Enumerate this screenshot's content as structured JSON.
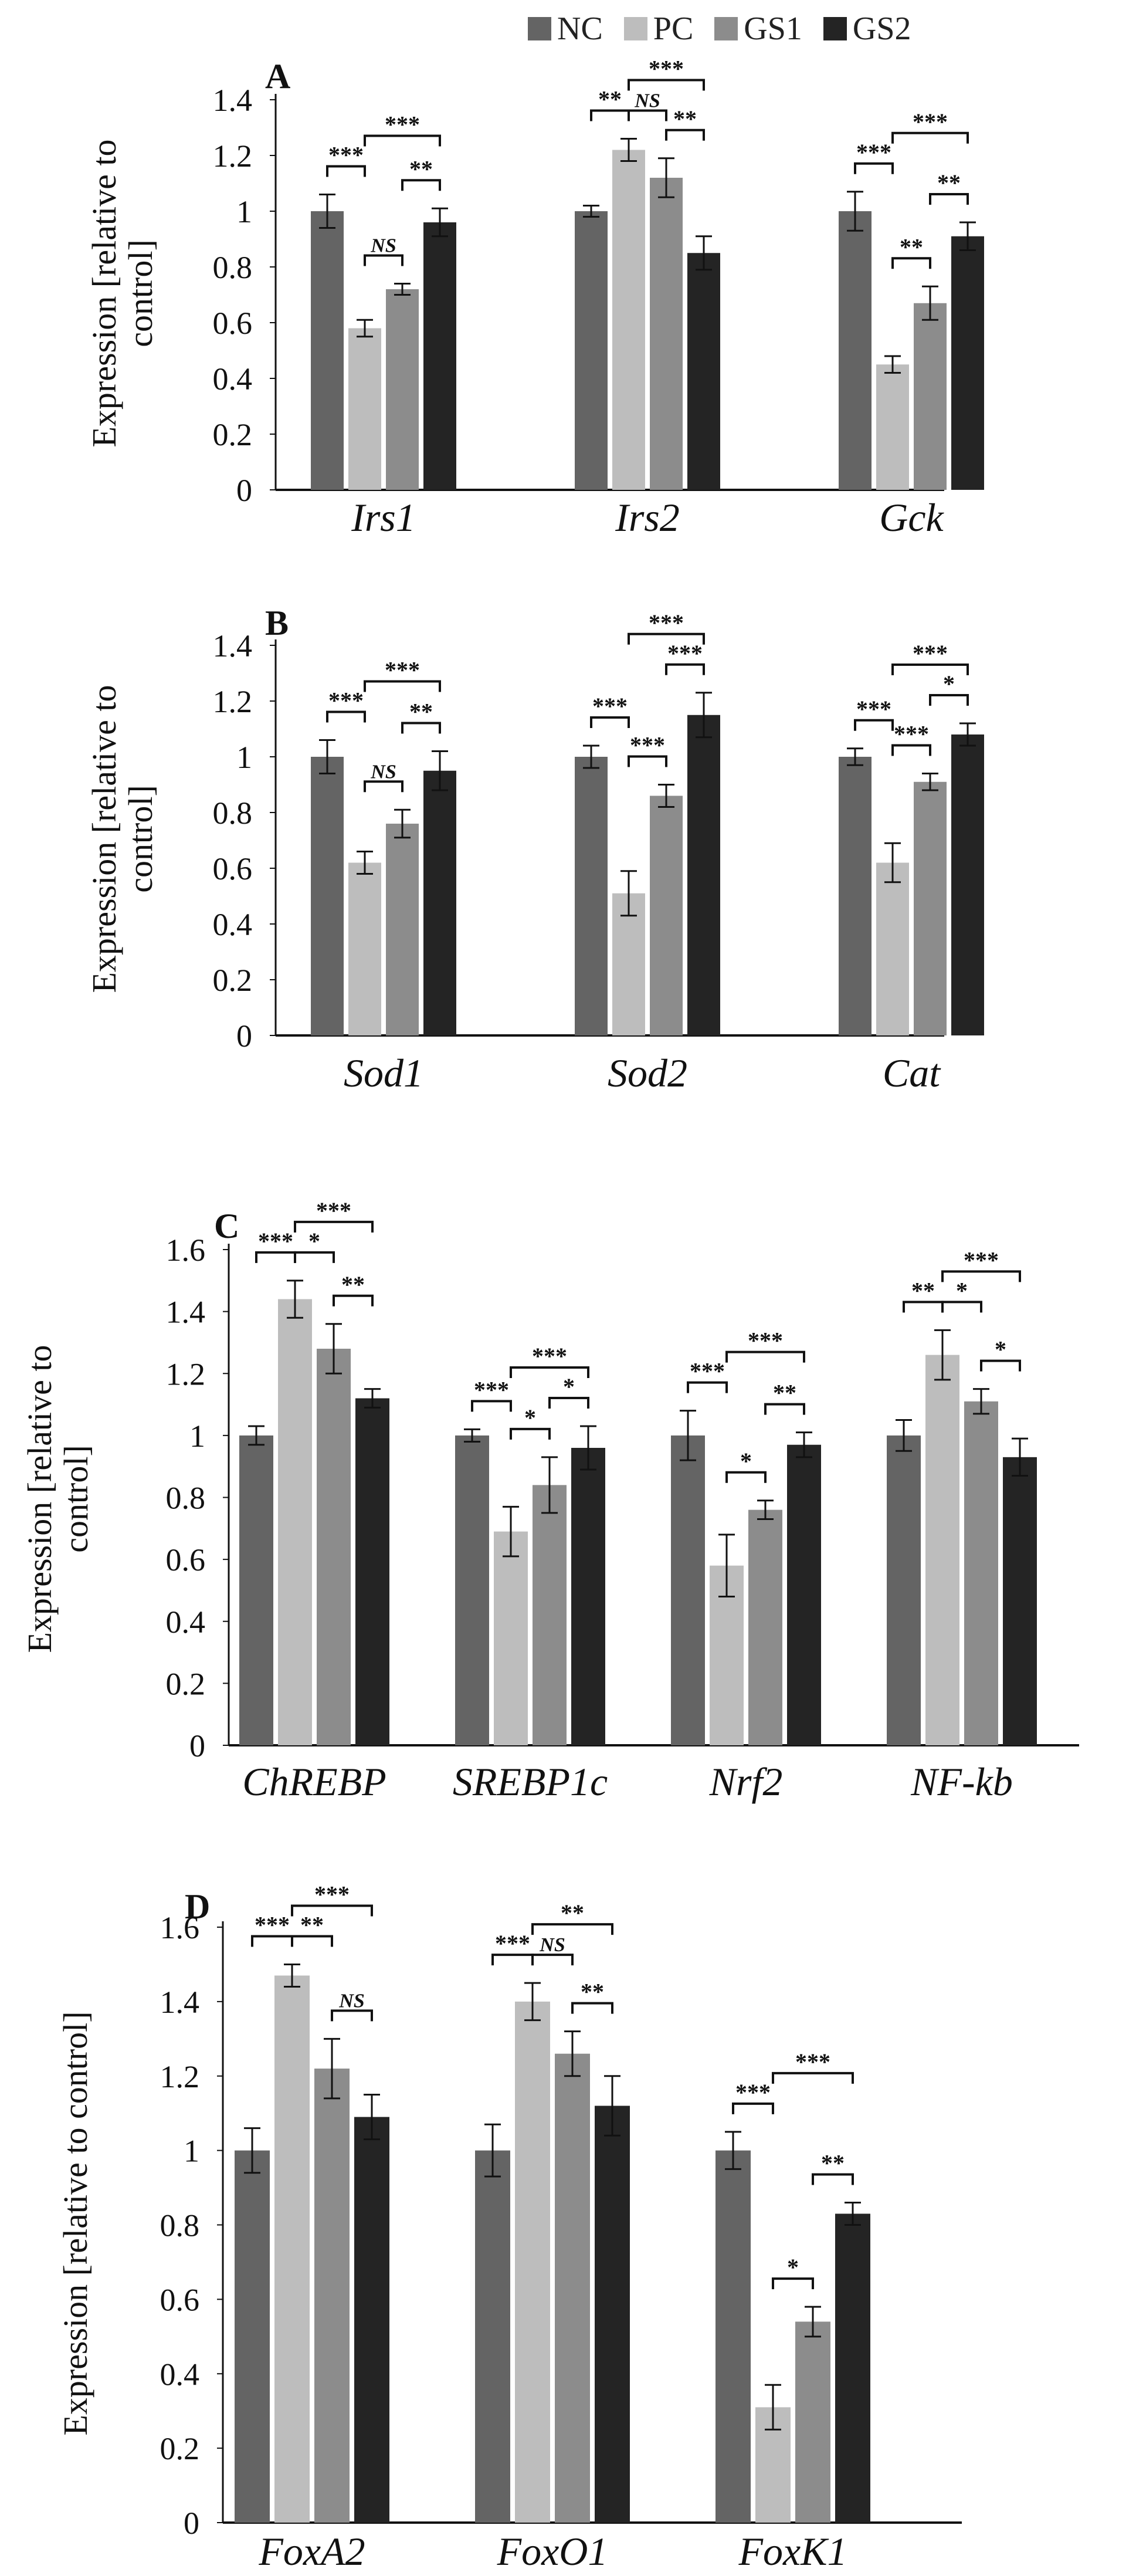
{
  "legend": [
    {
      "name": "NC",
      "color": "#646464"
    },
    {
      "name": "PC",
      "color": "#bdbdbd"
    },
    {
      "name": "GS1",
      "color": "#8c8c8c"
    },
    {
      "name": "GS2",
      "color": "#242424"
    }
  ],
  "chart_data": [
    {
      "type": "bar",
      "panel": "A",
      "ylabel": [
        "Expression [relative to",
        "control]"
      ],
      "ylim": [
        0,
        1.4
      ],
      "yticks": [
        0,
        0.2,
        0.4,
        0.6,
        0.8,
        1,
        1.2,
        1.4
      ],
      "categories": [
        "Irs1",
        "Irs2",
        "Gck"
      ],
      "series": [
        {
          "name": "NC",
          "values": [
            1.0,
            1.0,
            1.0
          ],
          "errors": [
            0.06,
            0.02,
            0.07
          ]
        },
        {
          "name": "PC",
          "values": [
            0.58,
            1.22,
            0.45
          ],
          "errors": [
            0.03,
            0.04,
            0.03
          ]
        },
        {
          "name": "GS1",
          "values": [
            0.72,
            1.12,
            0.67
          ],
          "errors": [
            0.02,
            0.07,
            0.06
          ]
        },
        {
          "name": "GS2",
          "values": [
            0.96,
            0.85,
            0.91
          ],
          "errors": [
            0.05,
            0.06,
            0.05
          ]
        }
      ],
      "significance": [
        {
          "category": 0,
          "from": 0,
          "to": 1,
          "label": "***"
        },
        {
          "category": 0,
          "from": 1,
          "to": 3,
          "label": "***"
        },
        {
          "category": 0,
          "from": 1,
          "to": 2,
          "label": "NS",
          "italic": true
        },
        {
          "category": 0,
          "from": 2,
          "to": 3,
          "label": "**"
        },
        {
          "category": 1,
          "from": 0,
          "to": 1,
          "label": "**"
        },
        {
          "category": 1,
          "from": 1,
          "to": 3,
          "label": "***"
        },
        {
          "category": 1,
          "from": 1,
          "to": 2,
          "label": "NS",
          "italic": true
        },
        {
          "category": 1,
          "from": 2,
          "to": 3,
          "label": "**"
        },
        {
          "category": 2,
          "from": 0,
          "to": 1,
          "label": "***"
        },
        {
          "category": 2,
          "from": 1,
          "to": 3,
          "label": "***"
        },
        {
          "category": 2,
          "from": 1,
          "to": 2,
          "label": "**"
        },
        {
          "category": 2,
          "from": 2,
          "to": 3,
          "label": "**"
        }
      ]
    },
    {
      "type": "bar",
      "panel": "B",
      "ylabel": [
        "Expression [relative to",
        "control]"
      ],
      "ylim": [
        0,
        1.4
      ],
      "yticks": [
        0,
        0.2,
        0.4,
        0.6,
        0.8,
        1,
        1.2,
        1.4
      ],
      "categories": [
        "Sod1",
        "Sod2",
        "Cat"
      ],
      "series": [
        {
          "name": "NC",
          "values": [
            1.0,
            1.0,
            1.0
          ],
          "errors": [
            0.06,
            0.04,
            0.03
          ]
        },
        {
          "name": "PC",
          "values": [
            0.62,
            0.51,
            0.62
          ],
          "errors": [
            0.04,
            0.08,
            0.07
          ]
        },
        {
          "name": "GS1",
          "values": [
            0.76,
            0.86,
            0.91
          ],
          "errors": [
            0.05,
            0.04,
            0.03
          ]
        },
        {
          "name": "GS2",
          "values": [
            0.95,
            1.15,
            1.08
          ],
          "errors": [
            0.07,
            0.08,
            0.04
          ]
        }
      ],
      "significance": [
        {
          "category": 0,
          "from": 0,
          "to": 1,
          "label": "***"
        },
        {
          "category": 0,
          "from": 1,
          "to": 3,
          "label": "***"
        },
        {
          "category": 0,
          "from": 1,
          "to": 2,
          "label": "NS",
          "italic": true
        },
        {
          "category": 0,
          "from": 2,
          "to": 3,
          "label": "**"
        },
        {
          "category": 1,
          "from": 0,
          "to": 1,
          "label": "***"
        },
        {
          "category": 1,
          "from": 1,
          "to": 3,
          "label": "***"
        },
        {
          "category": 1,
          "from": 1,
          "to": 2,
          "label": "***"
        },
        {
          "category": 1,
          "from": 2,
          "to": 3,
          "label": "***"
        },
        {
          "category": 2,
          "from": 0,
          "to": 1,
          "label": "***"
        },
        {
          "category": 2,
          "from": 1,
          "to": 3,
          "label": "***"
        },
        {
          "category": 2,
          "from": 1,
          "to": 2,
          "label": "***"
        },
        {
          "category": 2,
          "from": 2,
          "to": 3,
          "label": "*"
        }
      ]
    },
    {
      "type": "bar",
      "panel": "C",
      "ylabel": [
        "Expression [relative to",
        "control]"
      ],
      "ylim": [
        0,
        1.6
      ],
      "yticks": [
        0,
        0.2,
        0.4,
        0.6,
        0.8,
        1,
        1.2,
        1.4,
        1.6
      ],
      "categories": [
        "ChREBP",
        "SREBP1c",
        "Nrf2",
        "NF-kb"
      ],
      "series": [
        {
          "name": "NC",
          "values": [
            1.0,
            1.0,
            1.0,
            1.0
          ],
          "errors": [
            0.03,
            0.02,
            0.08,
            0.05
          ]
        },
        {
          "name": "PC",
          "values": [
            1.44,
            0.69,
            0.58,
            1.26
          ],
          "errors": [
            0.06,
            0.08,
            0.1,
            0.08
          ]
        },
        {
          "name": "GS1",
          "values": [
            1.28,
            0.84,
            0.76,
            1.11
          ],
          "errors": [
            0.08,
            0.09,
            0.03,
            0.04
          ]
        },
        {
          "name": "GS2",
          "values": [
            1.12,
            0.96,
            0.97,
            0.93
          ],
          "errors": [
            0.03,
            0.07,
            0.04,
            0.06
          ]
        }
      ],
      "significance": [
        {
          "category": 0,
          "from": 0,
          "to": 1,
          "label": "***"
        },
        {
          "category": 0,
          "from": 1,
          "to": 3,
          "label": "***"
        },
        {
          "category": 0,
          "from": 1,
          "to": 2,
          "label": "*"
        },
        {
          "category": 0,
          "from": 2,
          "to": 3,
          "label": "**"
        },
        {
          "category": 1,
          "from": 0,
          "to": 1,
          "label": "***"
        },
        {
          "category": 1,
          "from": 1,
          "to": 3,
          "label": "***"
        },
        {
          "category": 1,
          "from": 1,
          "to": 2,
          "label": "*"
        },
        {
          "category": 1,
          "from": 2,
          "to": 3,
          "label": "*"
        },
        {
          "category": 2,
          "from": 0,
          "to": 1,
          "label": "***"
        },
        {
          "category": 2,
          "from": 1,
          "to": 3,
          "label": "***"
        },
        {
          "category": 2,
          "from": 1,
          "to": 2,
          "label": "*"
        },
        {
          "category": 2,
          "from": 2,
          "to": 3,
          "label": "**"
        },
        {
          "category": 3,
          "from": 0,
          "to": 1,
          "label": "**"
        },
        {
          "category": 3,
          "from": 1,
          "to": 3,
          "label": "***"
        },
        {
          "category": 3,
          "from": 1,
          "to": 2,
          "label": "*"
        },
        {
          "category": 3,
          "from": 2,
          "to": 3,
          "label": "*"
        }
      ]
    },
    {
      "type": "bar",
      "panel": "D",
      "ylabel": [
        "Expression [relative to control]"
      ],
      "ylim": [
        0,
        1.6
      ],
      "yticks": [
        0,
        0.2,
        0.4,
        0.6,
        0.8,
        1,
        1.2,
        1.4,
        1.6
      ],
      "categories": [
        "FoxA2",
        "FoxO1",
        "FoxK1"
      ],
      "series": [
        {
          "name": "NC",
          "values": [
            1.0,
            1.0,
            1.0
          ],
          "errors": [
            0.06,
            0.07,
            0.05
          ]
        },
        {
          "name": "PC",
          "values": [
            1.47,
            1.4,
            0.31
          ],
          "errors": [
            0.03,
            0.05,
            0.06
          ]
        },
        {
          "name": "GS1",
          "values": [
            1.22,
            1.26,
            0.54
          ],
          "errors": [
            0.08,
            0.06,
            0.04
          ]
        },
        {
          "name": "GS2",
          "values": [
            1.09,
            1.12,
            0.83
          ],
          "errors": [
            0.06,
            0.08,
            0.03
          ]
        }
      ],
      "significance": [
        {
          "category": 0,
          "from": 0,
          "to": 1,
          "label": "***"
        },
        {
          "category": 0,
          "from": 1,
          "to": 3,
          "label": "***"
        },
        {
          "category": 0,
          "from": 1,
          "to": 2,
          "label": "**"
        },
        {
          "category": 0,
          "from": 2,
          "to": 3,
          "label": "NS",
          "italic": true
        },
        {
          "category": 1,
          "from": 0,
          "to": 1,
          "label": "***"
        },
        {
          "category": 1,
          "from": 1,
          "to": 3,
          "label": "**"
        },
        {
          "category": 1,
          "from": 1,
          "to": 2,
          "label": "NS",
          "italic": true
        },
        {
          "category": 1,
          "from": 2,
          "to": 3,
          "label": "**"
        },
        {
          "category": 2,
          "from": 0,
          "to": 1,
          "label": "***"
        },
        {
          "category": 2,
          "from": 1,
          "to": 3,
          "label": "***"
        },
        {
          "category": 2,
          "from": 1,
          "to": 2,
          "label": "*"
        },
        {
          "category": 2,
          "from": 2,
          "to": 3,
          "label": "**"
        }
      ]
    }
  ]
}
